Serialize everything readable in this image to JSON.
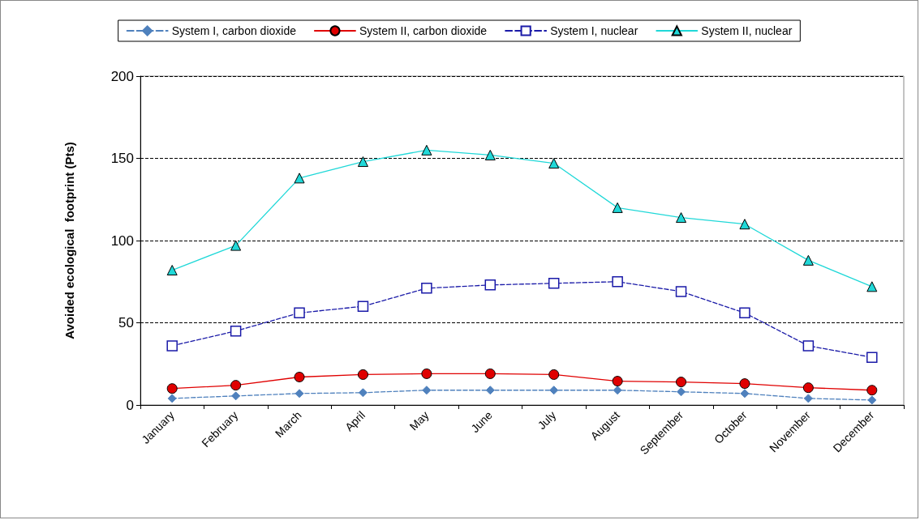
{
  "chart_data": {
    "type": "line",
    "ylabel": "Avoided ecological  footprint (Pts)",
    "categories": [
      "January",
      "February",
      "March",
      "April",
      "May",
      "June",
      "July",
      "August",
      "September",
      "October",
      "November",
      "December"
    ],
    "series": [
      {
        "name": "System I, carbon dioxide",
        "color": "#4f81bd",
        "marker": "diamond",
        "line_style": "dashed",
        "values": [
          4,
          5.5,
          7,
          7.5,
          9,
          9,
          9,
          9,
          8,
          7,
          4,
          3
        ]
      },
      {
        "name": "System II, carbon dioxide",
        "color": "#e00000",
        "marker": "circle",
        "line_style": "solid",
        "values": [
          10,
          12,
          17,
          18.5,
          19,
          19,
          18.5,
          14.5,
          14,
          13,
          10.5,
          9
        ]
      },
      {
        "name": "System I, nuclear",
        "color": "#1a1aa8",
        "marker": "square",
        "line_style": "dashed",
        "values": [
          36,
          45,
          56,
          60,
          71,
          73,
          74,
          75,
          69,
          56,
          36,
          29
        ]
      },
      {
        "name": "System II, nuclear",
        "color": "#20d8d8",
        "marker": "triangle",
        "line_style": "solid",
        "values": [
          82,
          97,
          138,
          148,
          155,
          152,
          147,
          120,
          114,
          110,
          88,
          72
        ]
      }
    ],
    "ylim": [
      0,
      200
    ],
    "yticks": [
      0,
      50,
      100,
      150,
      200
    ],
    "grid": "y",
    "legend": "top"
  }
}
